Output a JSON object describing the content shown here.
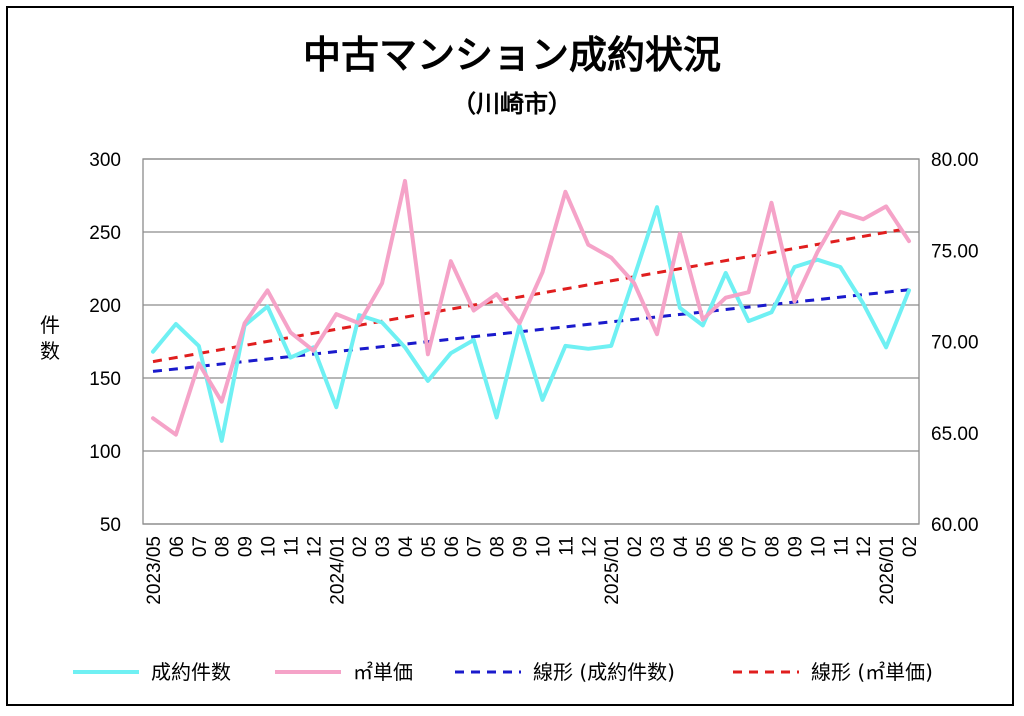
{
  "chart_data": {
    "type": "line",
    "title": "中古マンション成約状況",
    "subtitle": "（川崎市）",
    "ylabel": "件\n数",
    "y_left": {
      "min": 50,
      "max": 300,
      "ticks": [
        50,
        100,
        150,
        200,
        250,
        300
      ]
    },
    "y_right": {
      "min": 60,
      "max": 80,
      "ticks": [
        "60.00",
        "65.00",
        "70.00",
        "75.00",
        "80.00"
      ]
    },
    "grid": true,
    "x_tick_labels": [
      "2023/05",
      "06",
      "07",
      "08",
      "09",
      "10",
      "11",
      "12",
      "2024/01",
      "02",
      "03",
      "04",
      "05",
      "06",
      "07",
      "08",
      "09",
      "10",
      "11",
      "12",
      "2025/01",
      "02",
      "03",
      "04",
      "05",
      "06",
      "07",
      "08",
      "09",
      "10",
      "11",
      "12",
      "2026/01",
      "02"
    ],
    "series": [
      {
        "name": "成約件数",
        "axis": "left",
        "color": "#6ff0f3",
        "dash": false,
        "values": [
          168,
          187,
          172,
          107,
          186,
          199,
          164,
          171,
          130,
          193,
          188,
          171,
          148,
          167,
          176,
          123,
          186,
          135,
          172,
          170,
          172,
          219,
          267,
          198,
          186,
          222,
          189,
          195,
          226,
          231,
          226,
          201,
          171,
          210
        ]
      },
      {
        "name": "㎡単価",
        "axis": "right",
        "color": "#f5a3c8",
        "dash": false,
        "values": [
          65.8,
          64.9,
          68.8,
          66.7,
          71.0,
          72.8,
          70.5,
          69.5,
          71.5,
          71.0,
          73.2,
          78.8,
          69.3,
          74.4,
          71.7,
          72.6,
          71.0,
          73.8,
          78.2,
          75.3,
          74.6,
          73.2,
          70.4,
          75.9,
          71.2,
          72.4,
          72.7,
          77.6,
          72.2,
          74.9,
          77.1,
          76.7,
          77.4,
          75.5
        ]
      },
      {
        "name": "線形 (成約件数)",
        "axis": "left",
        "color": "#1a1acc",
        "dash": true,
        "values": [
          154.5,
          210.5
        ]
      },
      {
        "name": "線形 (㎡単価)",
        "axis": "right",
        "color": "#e01e1e",
        "dash": true,
        "values": [
          68.9,
          76.2
        ]
      }
    ],
    "legend": {
      "position": "bottom",
      "items": [
        "成約件数",
        "㎡単価",
        "線形 (成約件数)",
        "線形 (㎡単価)"
      ]
    }
  }
}
